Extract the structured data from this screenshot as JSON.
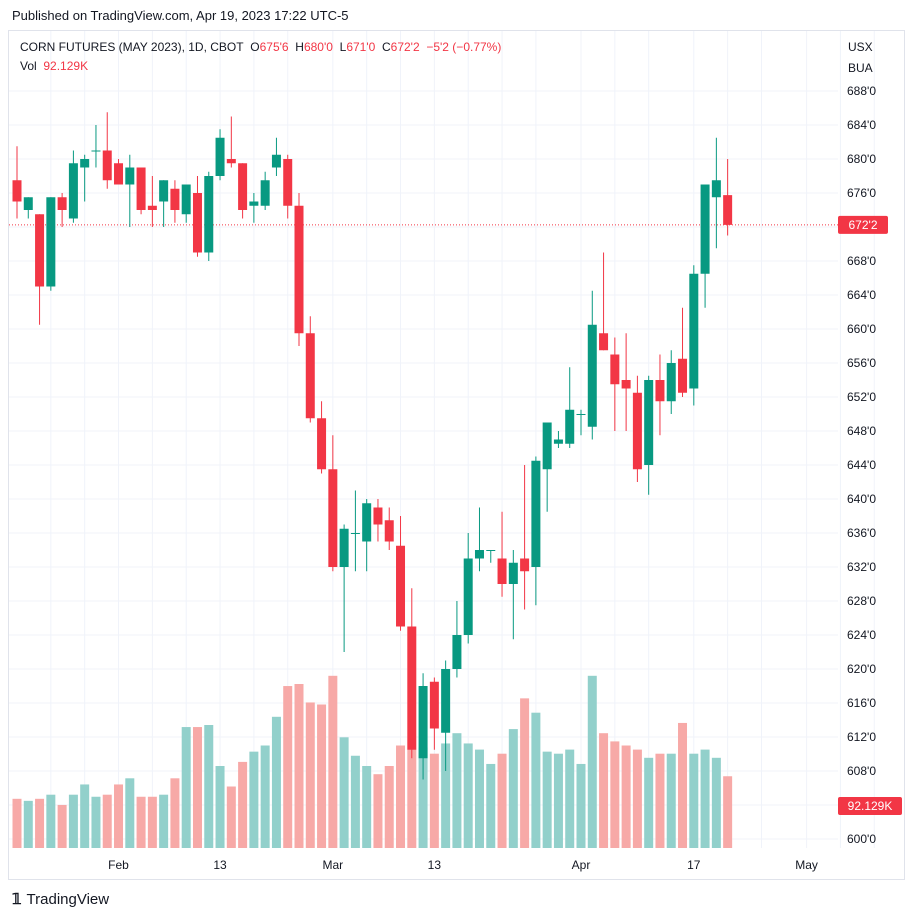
{
  "published": "Published on TradingView.com, Apr 19, 2023 17:22 UTC-5",
  "legend": {
    "symbol": "CORN FUTURES (MAY 2023), 1D, CBOT",
    "o_label": "O",
    "o_value": "675'6",
    "h_label": "H",
    "h_value": "680'0",
    "l_label": "L",
    "l_value": "671'0",
    "c_label": "C",
    "c_value": "672'2",
    "change": "−5'2 (−0.77%)",
    "vol_label": "Vol",
    "vol_value": "92.129K"
  },
  "currency": "USX",
  "unit": "BUA",
  "footer_brand": "TradingView",
  "colors": {
    "up": "#089981",
    "down": "#f23645",
    "vol_up": "#92d0cb",
    "vol_down": "#f7a9a7",
    "grid": "#f0f3fa"
  },
  "chart_data": {
    "type": "candlestick",
    "price_axis_labels": [
      "688'0",
      "684'0",
      "680'0",
      "676'0",
      "672'0",
      "668'0",
      "664'0",
      "660'0",
      "656'0",
      "652'0",
      "648'0",
      "644'0",
      "640'0",
      "636'0",
      "632'0",
      "628'0",
      "624'0",
      "620'0",
      "616'0",
      "612'0",
      "608'0",
      "604'0",
      "600'0"
    ],
    "price_axis_values": [
      688,
      684,
      680,
      676,
      672,
      668,
      664,
      660,
      656,
      652,
      648,
      644,
      640,
      636,
      632,
      628,
      624,
      620,
      616,
      612,
      608,
      604,
      600
    ],
    "time_axis_labels": [
      "Feb",
      "13",
      "Mar",
      "13",
      "Apr",
      "17",
      "May"
    ],
    "time_axis_index": [
      9,
      18,
      28,
      37,
      50,
      60,
      70
    ],
    "ylim": [
      600,
      690
    ],
    "last_price_label": "672'2",
    "last_price": 672.25,
    "volume_label": "92.129K",
    "candles": [
      {
        "o": 677.5,
        "h": 681.5,
        "l": 673,
        "c": 675
      },
      {
        "o": 674,
        "h": 675.5,
        "l": 673,
        "c": 675.5
      },
      {
        "o": 673.5,
        "h": 673.5,
        "l": 660.5,
        "c": 665
      },
      {
        "o": 665,
        "h": 675.5,
        "l": 664.5,
        "c": 675.5
      },
      {
        "o": 675.5,
        "h": 676,
        "l": 672,
        "c": 674
      },
      {
        "o": 673,
        "h": 681,
        "l": 672.5,
        "c": 679.5
      },
      {
        "o": 679,
        "h": 680.5,
        "l": 675,
        "c": 680
      },
      {
        "o": 681,
        "h": 684,
        "l": 679,
        "c": 681
      },
      {
        "o": 681,
        "h": 685.5,
        "l": 676.5,
        "c": 677.5
      },
      {
        "o": 679.5,
        "h": 680,
        "l": 677,
        "c": 677
      },
      {
        "o": 677,
        "h": 680.5,
        "l": 672,
        "c": 679
      },
      {
        "o": 679,
        "h": 679,
        "l": 673.5,
        "c": 674
      },
      {
        "o": 674.5,
        "h": 678,
        "l": 672,
        "c": 674
      },
      {
        "o": 675,
        "h": 677.5,
        "l": 672,
        "c": 677.5
      },
      {
        "o": 676.5,
        "h": 677.5,
        "l": 672.5,
        "c": 674
      },
      {
        "o": 673.5,
        "h": 677,
        "l": 672.5,
        "c": 677
      },
      {
        "o": 676,
        "h": 678,
        "l": 668.5,
        "c": 669
      },
      {
        "o": 669,
        "h": 678.5,
        "l": 668,
        "c": 678
      },
      {
        "o": 678,
        "h": 683.5,
        "l": 677.5,
        "c": 682.5
      },
      {
        "o": 680,
        "h": 685,
        "l": 679,
        "c": 679.5
      },
      {
        "o": 679.5,
        "h": 679.5,
        "l": 673,
        "c": 674
      },
      {
        "o": 674.5,
        "h": 676,
        "l": 672.5,
        "c": 675
      },
      {
        "o": 674.5,
        "h": 678.5,
        "l": 674,
        "c": 677.5
      },
      {
        "o": 679,
        "h": 682.5,
        "l": 678,
        "c": 680.5
      },
      {
        "o": 680,
        "h": 680.5,
        "l": 673,
        "c": 674.5
      },
      {
        "o": 674.5,
        "h": 676,
        "l": 658,
        "c": 659.5
      },
      {
        "o": 659.5,
        "h": 661.5,
        "l": 649,
        "c": 649.5
      },
      {
        "o": 649.5,
        "h": 651.5,
        "l": 643,
        "c": 643.5
      },
      {
        "o": 643.5,
        "h": 647.5,
        "l": 631.5,
        "c": 632
      },
      {
        "o": 632,
        "h": 637,
        "l": 622,
        "c": 636.5
      },
      {
        "o": 636,
        "h": 641,
        "l": 631.5,
        "c": 636
      },
      {
        "o": 635,
        "h": 640,
        "l": 631.5,
        "c": 639.5
      },
      {
        "o": 639,
        "h": 640,
        "l": 635,
        "c": 637
      },
      {
        "o": 637.5,
        "h": 639,
        "l": 634,
        "c": 635
      },
      {
        "o": 634.5,
        "h": 638,
        "l": 624.5,
        "c": 625
      },
      {
        "o": 625,
        "h": 629.5,
        "l": 609.5,
        "c": 610.5
      },
      {
        "o": 609.5,
        "h": 619.5,
        "l": 607,
        "c": 618
      },
      {
        "o": 618.5,
        "h": 619,
        "l": 610.5,
        "c": 613
      },
      {
        "o": 612.5,
        "h": 621,
        "l": 608,
        "c": 620
      },
      {
        "o": 620,
        "h": 628,
        "l": 619,
        "c": 624
      },
      {
        "o": 624,
        "h": 636,
        "l": 623,
        "c": 633
      },
      {
        "o": 633,
        "h": 639,
        "l": 631.5,
        "c": 634
      },
      {
        "o": 634,
        "h": 634,
        "l": 632.5,
        "c": 634
      },
      {
        "o": 633,
        "h": 638.5,
        "l": 628.5,
        "c": 630
      },
      {
        "o": 630,
        "h": 634,
        "l": 623.5,
        "c": 632.5
      },
      {
        "o": 633,
        "h": 644,
        "l": 627,
        "c": 631.5
      },
      {
        "o": 632,
        "h": 645,
        "l": 627.5,
        "c": 644.5
      },
      {
        "o": 643.5,
        "h": 649,
        "l": 638.5,
        "c": 649
      },
      {
        "o": 646.5,
        "h": 648,
        "l": 646,
        "c": 647
      },
      {
        "o": 646.5,
        "h": 655.5,
        "l": 646,
        "c": 650.5
      },
      {
        "o": 650,
        "h": 650.5,
        "l": 647.5,
        "c": 650
      },
      {
        "o": 648.5,
        "h": 664.5,
        "l": 647,
        "c": 660.5
      },
      {
        "o": 659.5,
        "h": 669,
        "l": 657.5,
        "c": 657.5
      },
      {
        "o": 657,
        "h": 659,
        "l": 648,
        "c": 653.5
      },
      {
        "o": 654,
        "h": 659.5,
        "l": 648,
        "c": 653
      },
      {
        "o": 652.5,
        "h": 654.5,
        "l": 642,
        "c": 643.5
      },
      {
        "o": 644,
        "h": 654.5,
        "l": 640.5,
        "c": 654
      },
      {
        "o": 654,
        "h": 657,
        "l": 647.5,
        "c": 651.5
      },
      {
        "o": 651.5,
        "h": 657.5,
        "l": 650,
        "c": 656
      },
      {
        "o": 656.5,
        "h": 662.5,
        "l": 652,
        "c": 652.5
      },
      {
        "o": 653,
        "h": 667.5,
        "l": 651,
        "c": 666.5
      },
      {
        "o": 666.5,
        "h": 677,
        "l": 662.5,
        "c": 677
      },
      {
        "o": 675.5,
        "h": 682.5,
        "l": 669.5,
        "c": 677.5
      },
      {
        "o": 675.75,
        "h": 680,
        "l": 671,
        "c": 672.25
      }
    ],
    "volume_rel": [
      0.24,
      0.23,
      0.24,
      0.26,
      0.21,
      0.26,
      0.31,
      0.25,
      0.26,
      0.31,
      0.34,
      0.25,
      0.25,
      0.26,
      0.34,
      0.59,
      0.59,
      0.6,
      0.4,
      0.3,
      0.42,
      0.47,
      0.5,
      0.64,
      0.79,
      0.8,
      0.71,
      0.7,
      0.84,
      0.54,
      0.45,
      0.4,
      0.36,
      0.4,
      0.5,
      0.48,
      0.49,
      0.46,
      0.51,
      0.56,
      0.51,
      0.48,
      0.41,
      0.46,
      0.58,
      0.73,
      0.66,
      0.47,
      0.46,
      0.48,
      0.41,
      0.84,
      0.56,
      0.52,
      0.5,
      0.48,
      0.44,
      0.46,
      0.46,
      0.61,
      0.46,
      0.48,
      0.44,
      0.35
    ]
  }
}
